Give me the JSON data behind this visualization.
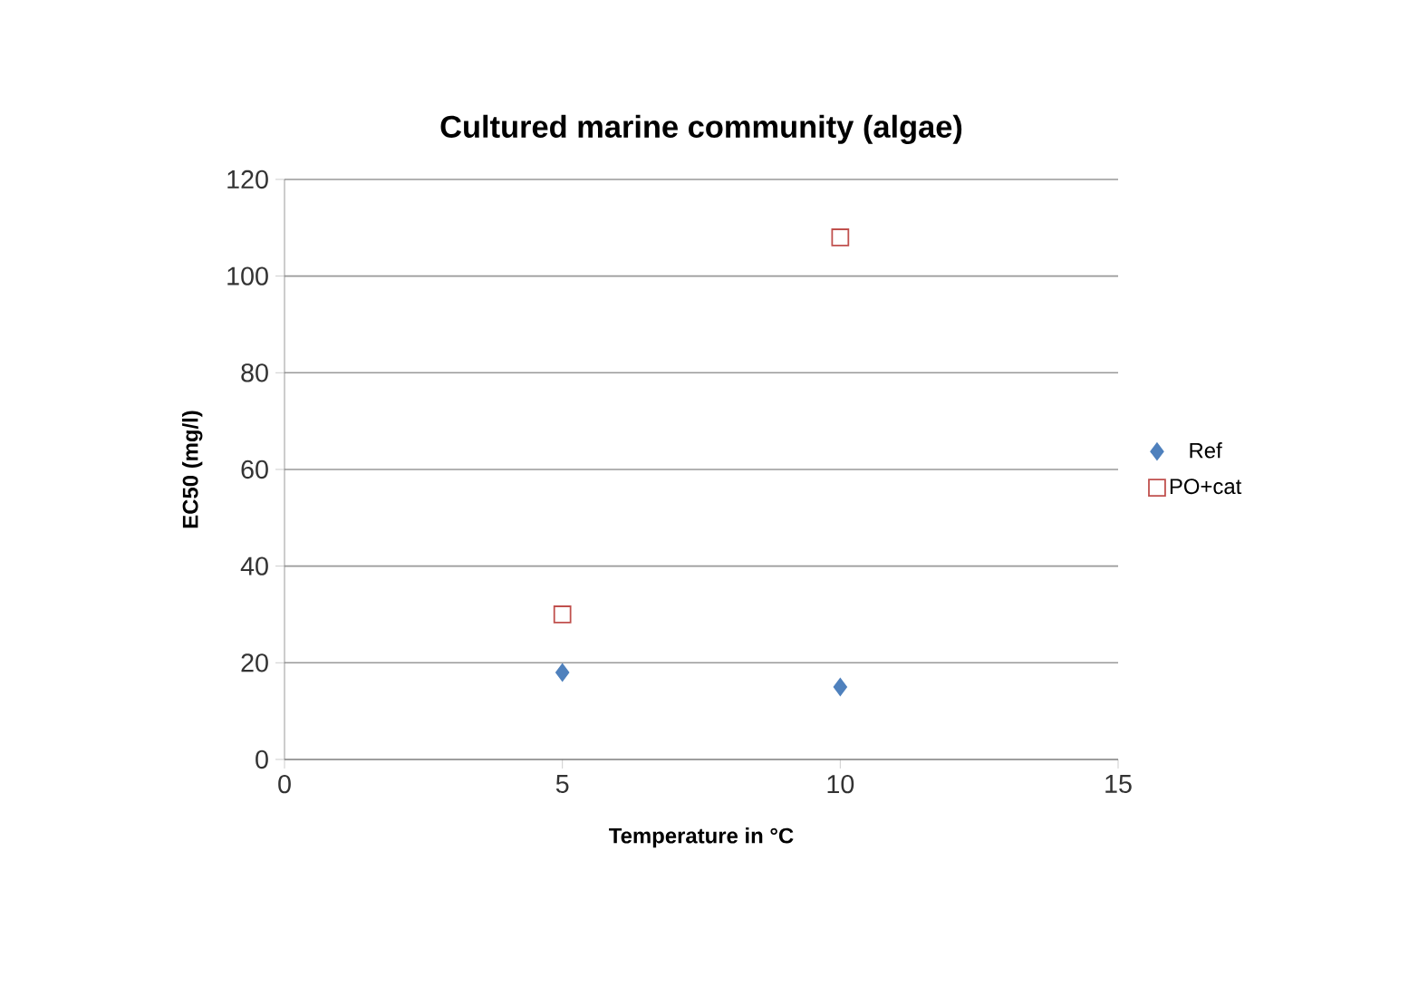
{
  "chart_data": {
    "type": "scatter",
    "title": "Cultured marine community (algae)",
    "xlabel": "Temperature in °C",
    "ylabel": "EC50 (mg/l)",
    "xlim": [
      0,
      15
    ],
    "xticks": [
      0,
      5,
      10,
      15
    ],
    "ylim": [
      0,
      120
    ],
    "yticks": [
      0,
      20,
      40,
      60,
      80,
      100,
      120
    ],
    "grid": "y",
    "legend": "right",
    "x": [
      5,
      10
    ],
    "series": [
      {
        "name": "Ref",
        "color": "#4f81bd",
        "marker": "diamond",
        "values": [
          18,
          15
        ]
      },
      {
        "name": "PO+cat",
        "color": "#c0504d",
        "marker": "square",
        "values": [
          30,
          108
        ]
      }
    ]
  }
}
